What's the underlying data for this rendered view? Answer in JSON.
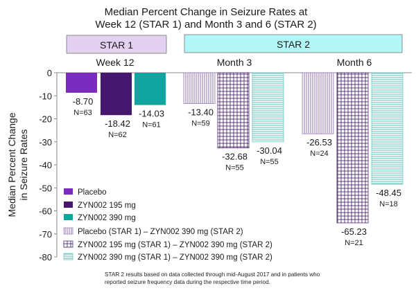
{
  "chart_data": {
    "type": "bar",
    "title_lines": [
      "Median Percent Change in Seizure Rates at",
      "Week 12 (STAR 1) and Month 3 and 6 (STAR 2)"
    ],
    "ylabel_lines": [
      "Median Percent Change",
      "in Seizure Rates"
    ],
    "xlabel": "",
    "ylim": [
      -80,
      0
    ],
    "yticks": [
      0,
      -10,
      -20,
      -30,
      -40,
      -50,
      -60,
      -70,
      -80
    ],
    "grid": false,
    "legend_position": "bottom-left",
    "study_headers": [
      {
        "label": "STAR 1",
        "color": "#e3d1f2"
      },
      {
        "label": "STAR 2",
        "color": "#b3f6f8"
      }
    ],
    "groups": [
      {
        "label": "Week 12",
        "study": "STAR 1",
        "bars": [
          {
            "series": "Placebo",
            "value": -8.7,
            "value_label": "-8.70",
            "n_label": "N=63"
          },
          {
            "series": "ZYN002 195 mg",
            "value": -18.42,
            "value_label": "-18.42",
            "n_label": "N=62"
          },
          {
            "series": "ZYN002 390 mg",
            "value": -14.03,
            "value_label": "-14.03",
            "n_label": "N=61"
          }
        ]
      },
      {
        "label": "Month 3",
        "study": "STAR 2",
        "bars": [
          {
            "series": "Placebo (STAR 1) – ZYN002 390 mg (STAR 2)",
            "value": -13.4,
            "value_label": "-13.40",
            "n_label": "N=59"
          },
          {
            "series": "ZYN002 195 mg (STAR 1) – ZYN002 390 mg (STAR 2)",
            "value": -32.68,
            "value_label": "-32.68",
            "n_label": "N=55"
          },
          {
            "series": "ZYN002 390 mg (STAR 1) – ZYN002 390 mg (STAR 2)",
            "value": -30.04,
            "value_label": "-30.04",
            "n_label": "N=55"
          }
        ]
      },
      {
        "label": "Month 6",
        "study": "STAR 2",
        "bars": [
          {
            "series": "Placebo (STAR 1) – ZYN002 390 mg (STAR 2)",
            "value": -26.53,
            "value_label": "-26.53",
            "n_label": "N=24"
          },
          {
            "series": "ZYN002 195 mg (STAR 1) – ZYN002 390 mg (STAR 2)",
            "value": -65.23,
            "value_label": "-65.23",
            "n_label": "N=21"
          },
          {
            "series": "ZYN002 390 mg (STAR 1) – ZYN002 390 mg (STAR 2)",
            "value": -48.45,
            "value_label": "-48.45",
            "n_label": "N=18"
          }
        ]
      }
    ],
    "legend": [
      {
        "label": "Placebo",
        "fill": "solid",
        "color": "#7b2cbf"
      },
      {
        "label": "ZYN002 195 mg",
        "fill": "solid",
        "color": "#45186e"
      },
      {
        "label": "ZYN002 390 mg",
        "fill": "solid",
        "color": "#12a5a0"
      },
      {
        "label": "Placebo (STAR 1) – ZYN002 390 mg (STAR 2)",
        "fill": "vertical",
        "color": "#9b7fb8"
      },
      {
        "label": "ZYN002 195 mg (STAR 1) – ZYN002 390 mg (STAR 2)",
        "fill": "grid",
        "color": "#4a2a6a"
      },
      {
        "label": "ZYN002 390 mg (STAR 1) – ZYN002 390 mg (STAR 2)",
        "fill": "horizontal",
        "color": "#6cc4c0"
      }
    ],
    "footnote_lines": [
      "STAR 2 results based on data collected through mid-August 2017 and in patients who",
      "reported seizure frequency data during the respective time period."
    ]
  }
}
